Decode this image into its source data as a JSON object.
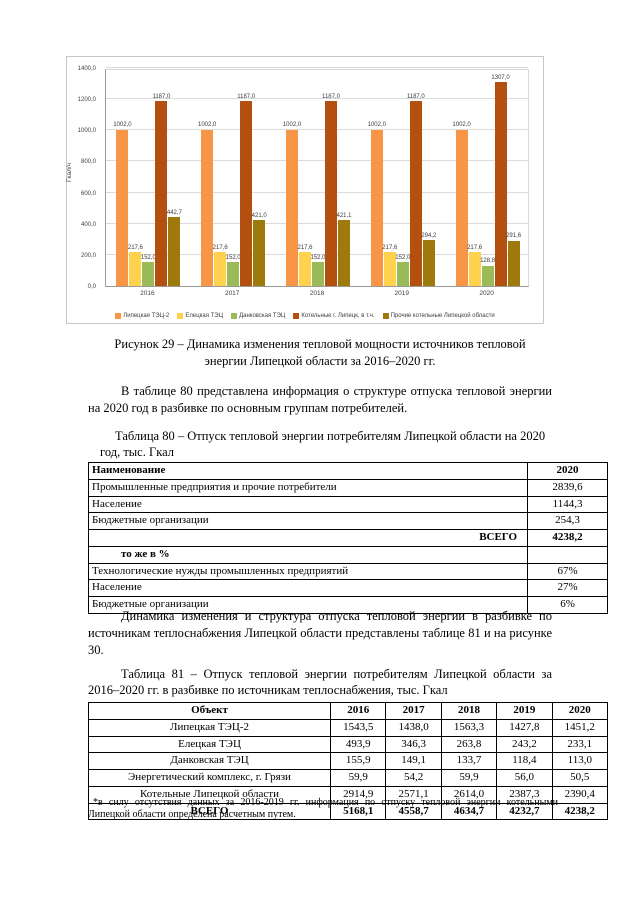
{
  "chart_data": {
    "type": "bar",
    "title": "",
    "ylabel": "Гкал/ч",
    "ylim": [
      0,
      1400
    ],
    "ytick_step": 200,
    "grid": true,
    "legend_position": "bottom",
    "categories": [
      "2016",
      "2017",
      "2018",
      "2019",
      "2020"
    ],
    "series": [
      {
        "name": "Липецкая ТЭЦ-2",
        "color": "#F79646",
        "values": [
          1002.0,
          1002.0,
          1002.0,
          1002.0,
          1002.0
        ]
      },
      {
        "name": "Елецкая ТЭЦ",
        "color": "#FFD24D",
        "values": [
          217.6,
          217.6,
          217.6,
          217.6,
          217.6
        ]
      },
      {
        "name": "Данковская ТЭЦ",
        "color": "#9BBB59",
        "values": [
          152.0,
          152.0,
          152.0,
          152.0,
          128.8
        ]
      },
      {
        "name": "Котельные г. Липецк, в т.ч.",
        "color": "#B4500F",
        "values": [
          1187.0,
          1187.0,
          1187.0,
          1187.0,
          1307.0
        ]
      },
      {
        "name": "Прочие котельные Липецкой области",
        "color": "#9E7A0C",
        "values": [
          442.7,
          421.0,
          421.1,
          294.2,
          291.6
        ]
      }
    ]
  },
  "figure": {
    "caption_lines": [
      "Рисунок 29 – Динамика изменения тепловой мощности источников тепловой",
      "энергии Липецкой области за 2016–2020 гг."
    ]
  },
  "paragraphs": {
    "p1": "В таблице 80 представлена информация о структуре отпуска тепловой энергии на 2020 год в разбивке по основным группам потребителей.",
    "p2": "Динамика изменения и структура отпуска тепловой энергии в разбивке по источникам теплоснабжения Липецкой области представлены таблице 81 и на рисунке 30."
  },
  "table80": {
    "caption_lines": [
      "Таблица 80 – Отпуск тепловой энергии потребителям Липецкой области на 2020",
      "год, тыс. Гкал"
    ],
    "header": {
      "name": "Наименование",
      "year": "2020"
    },
    "rows": [
      {
        "label": "Промышленные предприятия и прочие потребители",
        "value": "2839,6",
        "cls": ""
      },
      {
        "label": "Население",
        "value": "1144,3",
        "cls": ""
      },
      {
        "label": "Бюджетные организации",
        "value": "254,3",
        "cls": ""
      },
      {
        "label": "ВСЕГО",
        "value": "4238,2",
        "cls": "total"
      },
      {
        "label": "то же в %",
        "value": "",
        "cls": "subhead"
      },
      {
        "label": "Технологические нужды промышленных предприятий",
        "value": "67%",
        "cls": ""
      },
      {
        "label": "Население",
        "value": "27%",
        "cls": ""
      },
      {
        "label": "Бюджетные организации",
        "value": "6%",
        "cls": ""
      }
    ]
  },
  "table81": {
    "caption_lines": [
      "Таблица 81 – Отпуск тепловой энергии потребителям Липецкой области за",
      "2016–2020 гг. в разбивке по источникам теплоснабжения, тыс. Гкал"
    ],
    "headers": [
      "Объект",
      "2016",
      "2017",
      "2018",
      "2019",
      "2020"
    ],
    "rows": [
      [
        "Липецкая ТЭЦ-2",
        "1543,5",
        "1438,0",
        "1563,3",
        "1427,8",
        "1451,2"
      ],
      [
        "Елецкая ТЭЦ",
        "493,9",
        "346,3",
        "263,8",
        "243,2",
        "233,1"
      ],
      [
        "Данковская ТЭЦ",
        "155,9",
        "149,1",
        "133,7",
        "118,4",
        "113,0"
      ],
      [
        "Энергетический комплекс, г. Грязи",
        "59,9",
        "54,2",
        "59,9",
        "56,0",
        "50,5"
      ],
      [
        "Котельные Липецкой области",
        "2914,9",
        "2571,1",
        "2614,0",
        "2387,3",
        "2390,4"
      ],
      [
        "ВСЕГО",
        "5168,1",
        "4558,7",
        "4634,7",
        "4232,7",
        "4238,2"
      ]
    ]
  },
  "footnote": "*в силу отсутствия данных за 2016-2019 гг. информация по отпуску тепловой энергии котельными Липецкой области определена расчетным путем."
}
